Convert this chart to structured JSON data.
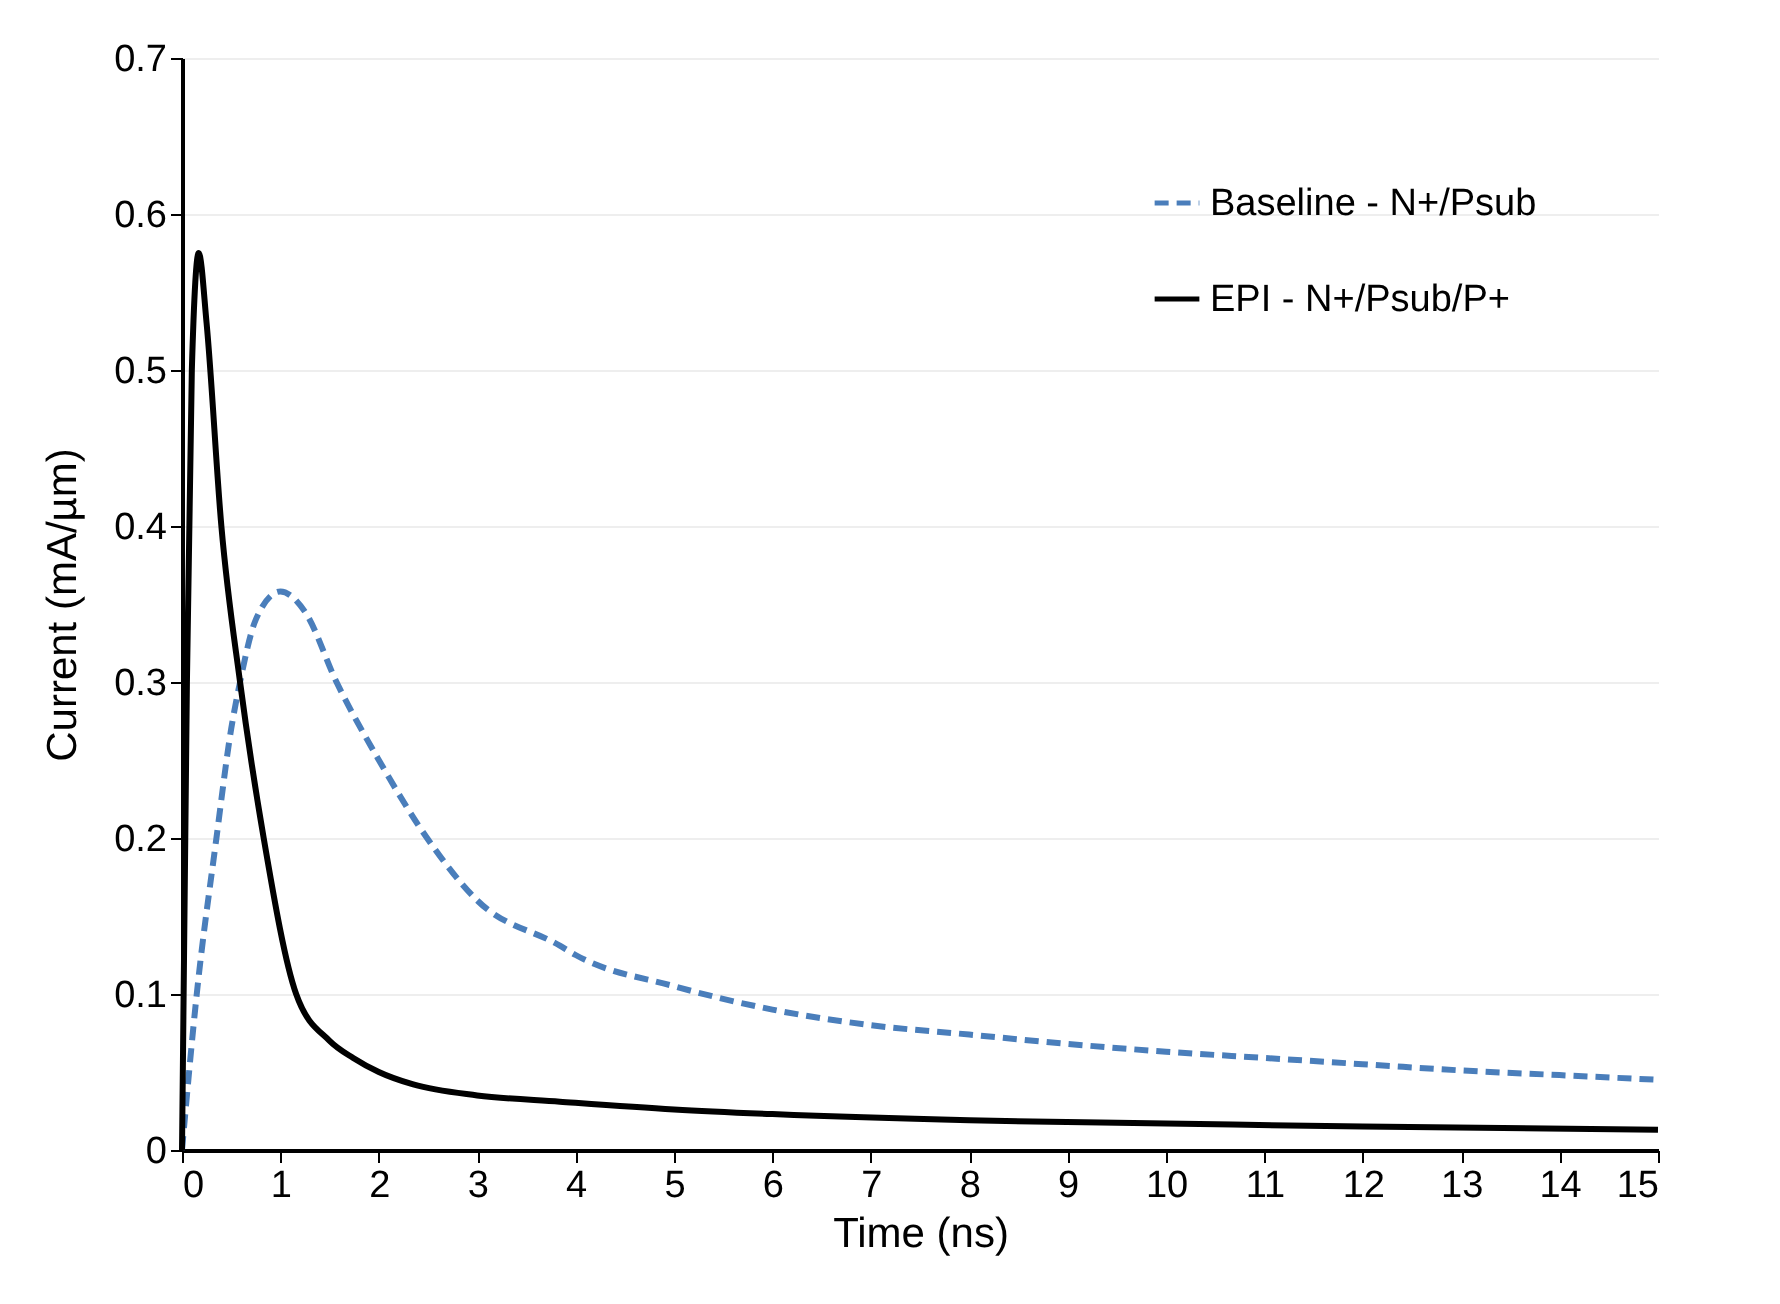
{
  "chart_data": {
    "type": "line",
    "xlabel": "Time (ns)",
    "ylabel": "Current (mA/µm)",
    "xlim": [
      0,
      15
    ],
    "ylim": [
      0,
      0.7
    ],
    "xticks": [
      0,
      1,
      2,
      3,
      4,
      5,
      6,
      7,
      8,
      9,
      10,
      11,
      12,
      13,
      14,
      15
    ],
    "yticks": [
      0,
      0.1,
      0.2,
      0.3,
      0.4,
      0.5,
      0.6,
      0.7
    ],
    "grid": "y",
    "legend": "top right",
    "series": [
      {
        "name": "Baseline - N+/Psub",
        "color": "#4a7ebb",
        "line_style": "dashed",
        "x": [
          0,
          0.15,
          0.35,
          0.5,
          0.59,
          0.75,
          1.0,
          1.25,
          1.57,
          2.0,
          2.49,
          3,
          3.84,
          4,
          5,
          6,
          7,
          8,
          9,
          10,
          11,
          12,
          13,
          14,
          15
        ],
        "values": [
          0,
          0.1,
          0.2,
          0.27,
          0.3,
          0.34,
          0.358,
          0.345,
          0.3,
          0.25,
          0.2,
          0.16,
          0.131,
          0.125,
          0.105,
          0.09,
          0.08,
          0.074,
          0.068,
          0.063,
          0.059,
          0.055,
          0.051,
          0.048,
          0.045
        ]
      },
      {
        "name": "EPI - N+/Psub/P+",
        "color": "#000000",
        "line_style": "solid",
        "x": [
          0,
          0.05,
          0.1,
          0.17,
          0.25,
          0.4,
          0.59,
          0.83,
          1.16,
          1.5,
          1.74,
          2,
          2.35,
          3,
          3.84,
          5,
          6,
          8,
          10,
          12,
          15
        ],
        "values": [
          0,
          0.3,
          0.5,
          0.575,
          0.53,
          0.4,
          0.3,
          0.2,
          0.1,
          0.07,
          0.059,
          0.05,
          0.042,
          0.035,
          0.031,
          0.026,
          0.023,
          0.019,
          0.017,
          0.015,
          0.013
        ]
      }
    ]
  }
}
